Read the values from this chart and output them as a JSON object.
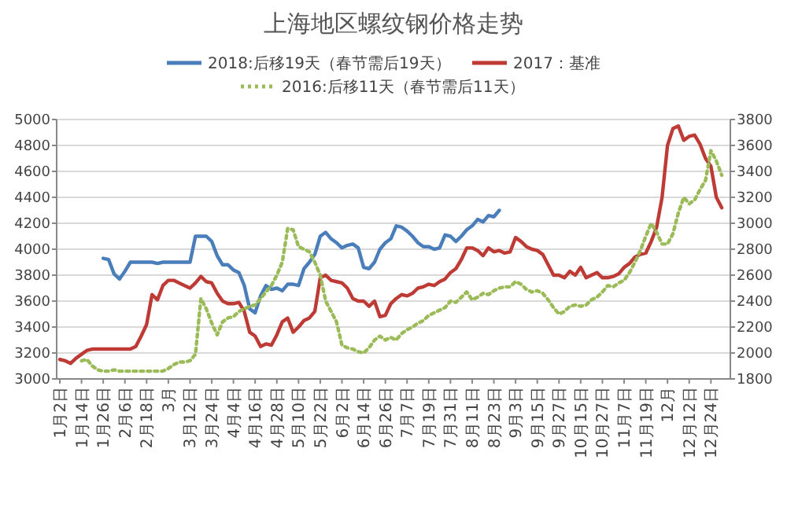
{
  "chart_data": {
    "type": "line",
    "title": "上海地区螺纹钢价格走势",
    "categories": [
      "1月2日",
      null,
      null,
      null,
      "1月14日",
      null,
      null,
      null,
      "1月26日",
      null,
      null,
      null,
      "2月6日",
      null,
      null,
      null,
      "2月18日",
      null,
      null,
      null,
      "3月",
      null,
      null,
      null,
      "3月12日",
      null,
      null,
      null,
      "3月24日",
      null,
      null,
      null,
      "4月4日",
      null,
      null,
      null,
      "4月16日",
      null,
      null,
      null,
      "4月28日",
      null,
      null,
      null,
      "5月10日",
      null,
      null,
      null,
      "5月22日",
      null,
      null,
      null,
      "6月2日",
      null,
      null,
      null,
      "6月14日",
      null,
      null,
      null,
      "6月26日",
      null,
      null,
      null,
      "7月7日",
      null,
      null,
      null,
      "7月19日",
      null,
      null,
      null,
      "7月31日",
      null,
      null,
      null,
      "8月11日",
      null,
      null,
      null,
      "8月23日",
      null,
      null,
      null,
      "9月3日",
      null,
      null,
      null,
      "9月15日",
      null,
      null,
      null,
      "9月27日",
      null,
      null,
      null,
      "10月15日",
      null,
      null,
      null,
      "10月27日",
      null,
      null,
      null,
      "11月7日",
      null,
      null,
      null,
      "11月19日",
      null,
      null,
      null,
      "12月",
      null,
      null,
      null,
      "12月12日",
      null,
      null,
      null,
      "12月24日",
      null,
      null,
      null
    ],
    "series": [
      {
        "name": "2018:后移19天（春节需后19天）",
        "color": "#4a7ebb",
        "line_style": "solid",
        "values": [
          null,
          null,
          null,
          null,
          null,
          null,
          null,
          null,
          3930,
          3920,
          3810,
          3770,
          3830,
          3900,
          3900,
          3900,
          3900,
          3900,
          3890,
          3900,
          3900,
          3900,
          3900,
          3900,
          3900,
          4100,
          4100,
          4100,
          4060,
          3950,
          3880,
          3880,
          3840,
          3820,
          3720,
          3540,
          3510,
          3640,
          3720,
          3690,
          3700,
          3680,
          3730,
          3730,
          3720,
          3850,
          3900,
          3960,
          4100,
          4130,
          4080,
          4050,
          4010,
          4030,
          4040,
          4010,
          3860,
          3850,
          3900,
          4000,
          4050,
          4080,
          4180,
          4170,
          4140,
          4100,
          4050,
          4020,
          4020,
          4000,
          4010,
          4110,
          4100,
          4060,
          4100,
          4150,
          4180,
          4230,
          4210,
          4260,
          4250,
          4300,
          null,
          null,
          null,
          null,
          null,
          null,
          null,
          null,
          null,
          null,
          null,
          null,
          null,
          null,
          null,
          null,
          null,
          null,
          null,
          null,
          null,
          null,
          null,
          null,
          null,
          null,
          null,
          null,
          null,
          null,
          null,
          null,
          null,
          null,
          null,
          null,
          null,
          null,
          null,
          null,
          null,
          null
        ]
      },
      {
        "name": "2017：基准",
        "color": "#be3a34",
        "line_style": "solid",
        "values": [
          3150,
          3140,
          3120,
          3160,
          3190,
          3220,
          3230,
          3230,
          3230,
          3230,
          3230,
          3230,
          3230,
          3230,
          3250,
          3330,
          3420,
          3650,
          3610,
          3720,
          3760,
          3760,
          3740,
          3720,
          3700,
          3740,
          3790,
          3750,
          3740,
          3660,
          3600,
          3580,
          3580,
          3590,
          3520,
          3360,
          3330,
          3250,
          3270,
          3260,
          3340,
          3440,
          3470,
          3360,
          3400,
          3450,
          3470,
          3520,
          3780,
          3800,
          3760,
          3750,
          3740,
          3700,
          3620,
          3600,
          3600,
          3560,
          3600,
          3480,
          3490,
          3580,
          3620,
          3650,
          3640,
          3660,
          3700,
          3710,
          3730,
          3720,
          3750,
          3770,
          3820,
          3850,
          3920,
          4010,
          4010,
          3990,
          3950,
          4010,
          3980,
          3990,
          3970,
          3980,
          4090,
          4060,
          4020,
          4000,
          3990,
          3960,
          3880,
          3800,
          3800,
          3780,
          3830,
          3800,
          3860,
          3780,
          3800,
          3820,
          3780,
          3780,
          3790,
          3810,
          3860,
          3890,
          3940,
          3960,
          3970,
          4060,
          4170,
          4400,
          4800,
          4930,
          4950,
          4840,
          4870,
          4880,
          4810,
          4700,
          4640,
          4400,
          4320,
          null
        ]
      },
      {
        "name": "2016:后移11天（春节需后11天）",
        "color": "#9bbb59",
        "line_style": "dotted",
        "axis": "y2",
        "values": [
          null,
          null,
          null,
          null,
          1940,
          1950,
          1900,
          1870,
          1860,
          1860,
          1870,
          1860,
          1860,
          1860,
          1860,
          1860,
          1860,
          1860,
          1860,
          1860,
          1880,
          1910,
          1930,
          1930,
          1940,
          1990,
          2420,
          2340,
          2230,
          2140,
          2240,
          2270,
          2280,
          2320,
          2340,
          2360,
          2370,
          2420,
          2470,
          2520,
          2600,
          2700,
          2960,
          2950,
          2820,
          2800,
          2780,
          2700,
          2600,
          2400,
          2320,
          2240,
          2060,
          2040,
          2030,
          2010,
          2000,
          2040,
          2100,
          2130,
          2100,
          2120,
          2100,
          2150,
          2180,
          2200,
          2230,
          2250,
          2290,
          2310,
          2330,
          2350,
          2400,
          2390,
          2430,
          2470,
          2410,
          2430,
          2460,
          2450,
          2480,
          2500,
          2510,
          2510,
          2550,
          2530,
          2490,
          2470,
          2480,
          2460,
          2410,
          2350,
          2300,
          2320,
          2360,
          2370,
          2360,
          2370,
          2410,
          2430,
          2470,
          2520,
          2510,
          2540,
          2560,
          2620,
          2700,
          2790,
          2900,
          3000,
          2930,
          2840,
          2840,
          2920,
          3080,
          3200,
          3150,
          3180,
          3260,
          3330,
          3560,
          3480,
          3370,
          null
        ]
      }
    ],
    "ylim": [
      3000,
      5000
    ],
    "yticks": [
      3000,
      3200,
      3400,
      3600,
      3800,
      4000,
      4200,
      4400,
      4600,
      4800,
      5000
    ],
    "y2lim": [
      1800,
      3800
    ],
    "y2ticks": [
      1800,
      2000,
      2200,
      2400,
      2600,
      2800,
      3000,
      3200,
      3400,
      3600,
      3800
    ],
    "grid": "y",
    "legend": "top",
    "marker": "none"
  }
}
